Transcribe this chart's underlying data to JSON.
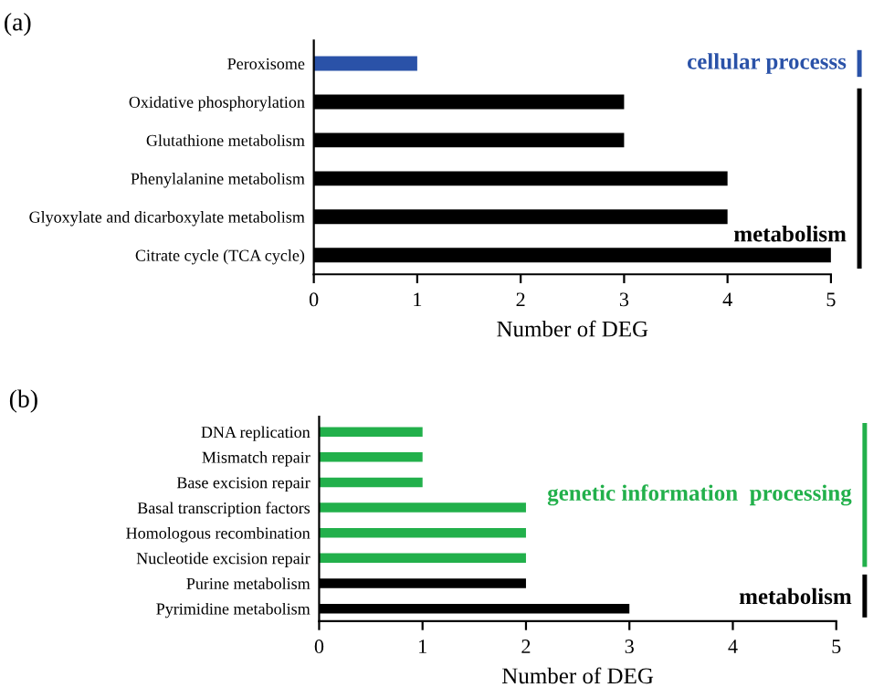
{
  "chart_data": [
    {
      "type": "bar",
      "orientation": "horizontal",
      "title": "(a)",
      "xlabel": "Number of DEG",
      "categories": [
        "Peroxisome",
        "Oxidative phosphorylation",
        "Glutathione metabolism",
        "Phenylalanine metabolism",
        "Glyoxylate and dicarboxylate metabolism",
        "Citrate cycle (TCA cycle)"
      ],
      "series": [
        {
          "name": "cellular processs",
          "color": "#2a52a8",
          "values": [
            1,
            null,
            null,
            null,
            null,
            null
          ]
        },
        {
          "name": "metabolism",
          "color": "#000000",
          "values": [
            null,
            3,
            3,
            4,
            4,
            5
          ]
        }
      ],
      "xlim": [
        0,
        5
      ],
      "xticks": [
        0,
        1,
        2,
        3,
        4,
        5
      ],
      "grid": false,
      "legend": "right"
    },
    {
      "type": "bar",
      "orientation": "horizontal",
      "title": "(b)",
      "xlabel": "Number of DEG",
      "categories": [
        "DNA replication",
        "Mismatch repair",
        "Base excision repair",
        "Basal transcription factors",
        "Homologous recombination",
        "Nucleotide excision repair",
        "Purine metabolism",
        "Pyrimidine metabolism"
      ],
      "series": [
        {
          "name": "genetic information  processing",
          "color": "#22b04b",
          "values": [
            1,
            1,
            1,
            2,
            2,
            2,
            null,
            null
          ]
        },
        {
          "name": "metabolism",
          "color": "#000000",
          "values": [
            null,
            null,
            null,
            null,
            null,
            null,
            2,
            3
          ]
        }
      ],
      "xlim": [
        0,
        5
      ],
      "xticks": [
        0,
        1,
        2,
        3,
        4,
        5
      ],
      "grid": false,
      "legend": "right"
    }
  ]
}
